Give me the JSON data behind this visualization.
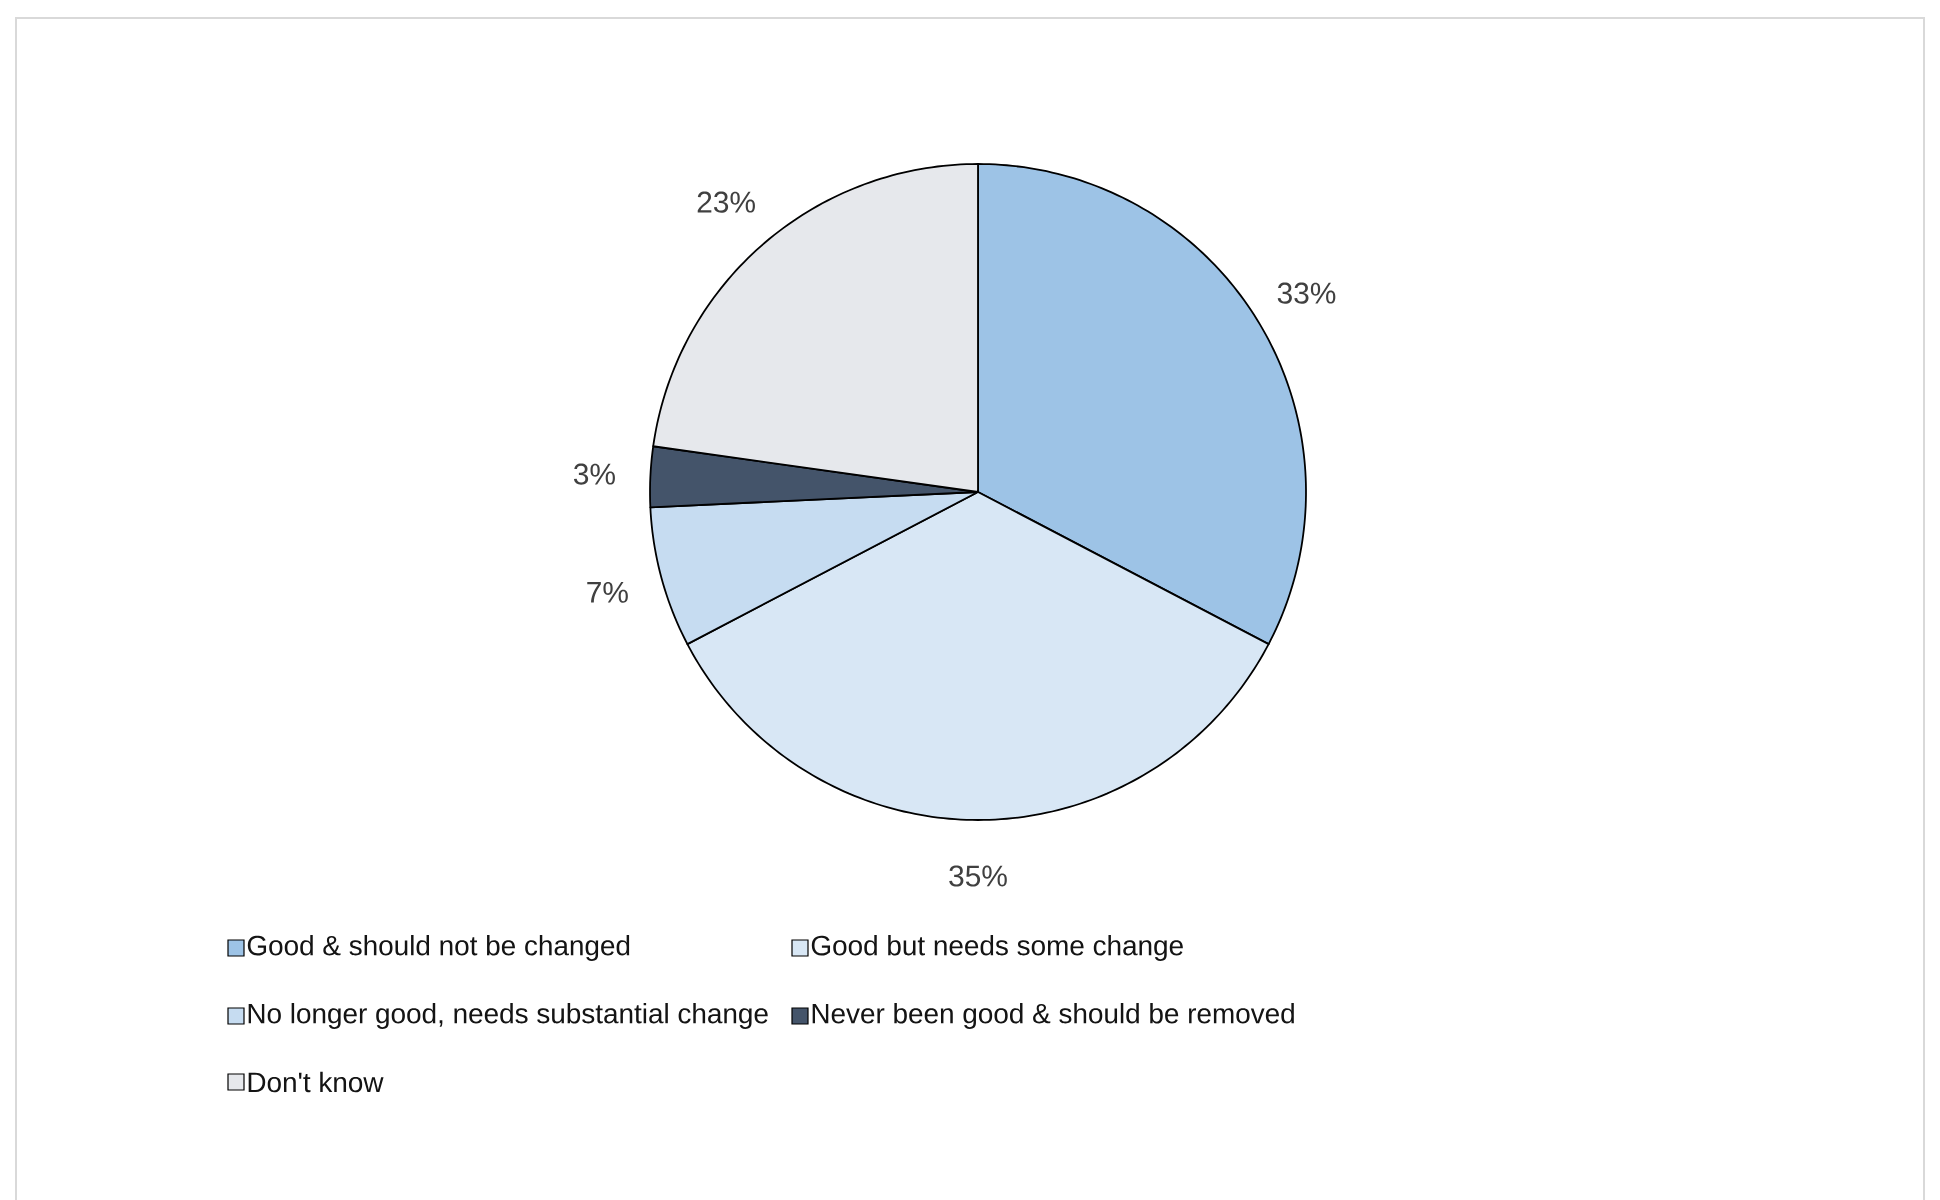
{
  "chart_data": {
    "type": "pie",
    "categories": [
      "Good & should not be changed",
      "Good but needs some change",
      "No longer good, needs substantial change",
      "Never been good & should be removed",
      "Don't know"
    ],
    "values": [
      33,
      35,
      7,
      3,
      23
    ],
    "value_labels": [
      "33%",
      "35%",
      "7%",
      "3%",
      "23%"
    ],
    "colors": [
      "#9dc3e6",
      "#d8e7f5",
      "#c6dcf1",
      "#44546a",
      "#e6e8ec"
    ],
    "legend": "bottom"
  }
}
